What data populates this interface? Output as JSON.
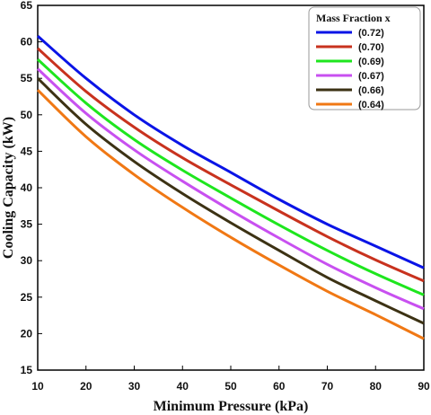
{
  "chart_data": {
    "type": "line",
    "xlabel": "Minimum Pressure (kPa)",
    "ylabel": "Cooling Capacity (kW)",
    "xlim": [
      10,
      90
    ],
    "ylim": [
      15,
      65
    ],
    "xticks": [
      "10",
      "20",
      "30",
      "40",
      "50",
      "60",
      "70",
      "80",
      "90"
    ],
    "yticks": [
      "15",
      "20",
      "25",
      "30",
      "35",
      "40",
      "45",
      "50",
      "55",
      "60",
      "65"
    ],
    "grid": false,
    "legend": {
      "title": "Mass Fraction x",
      "placement": "top-right"
    },
    "x": [
      10,
      20,
      30,
      40,
      50,
      60,
      70,
      80,
      90
    ],
    "series": [
      {
        "name": "(0.72)",
        "color": "#0a14e6",
        "values": [
          60.8,
          55.0,
          50.0,
          45.8,
          42.1,
          38.4,
          35.0,
          32.0,
          29.0
        ]
      },
      {
        "name": "(0.70)",
        "color": "#c8321e",
        "values": [
          59.1,
          53.2,
          48.3,
          44.1,
          40.4,
          36.8,
          33.3,
          30.1,
          27.2
        ]
      },
      {
        "name": "(0.69)",
        "color": "#1ee61e",
        "values": [
          57.6,
          51.6,
          46.6,
          42.4,
          38.6,
          34.9,
          31.4,
          28.2,
          25.3
        ]
      },
      {
        "name": "(0.67)",
        "color": "#c850f0",
        "values": [
          56.3,
          50.2,
          45.2,
          40.9,
          36.9,
          33.1,
          29.5,
          26.3,
          23.4
        ]
      },
      {
        "name": "(0.66)",
        "color": "#3c3214",
        "values": [
          55.0,
          48.7,
          43.6,
          39.2,
          35.2,
          31.4,
          27.7,
          24.5,
          21.4
        ]
      },
      {
        "name": "(0.64)",
        "color": "#f07814",
        "values": [
          53.4,
          47.0,
          41.8,
          37.3,
          33.2,
          29.4,
          25.8,
          22.6,
          19.3
        ]
      }
    ]
  }
}
